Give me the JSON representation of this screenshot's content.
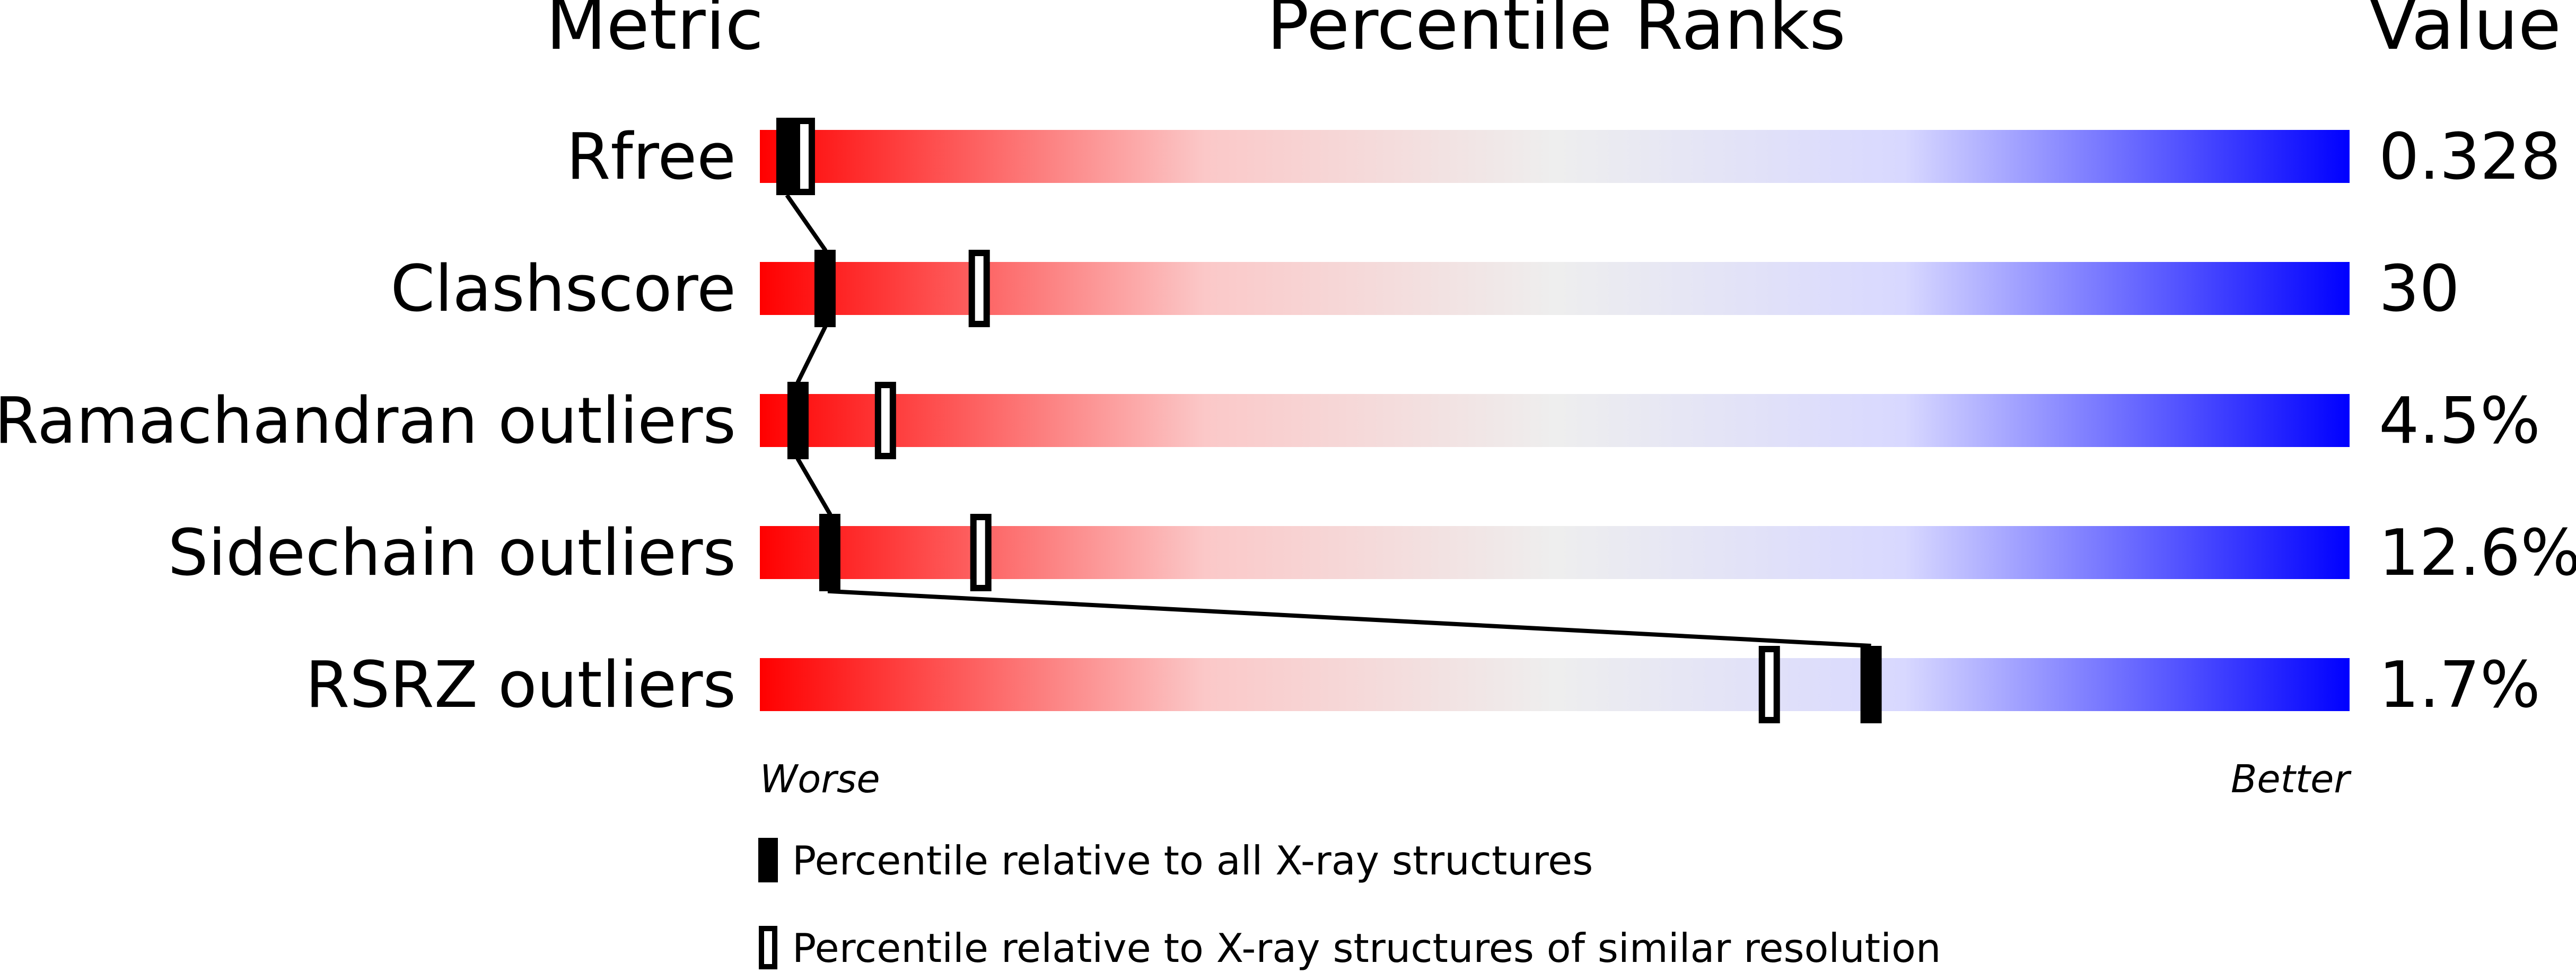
{
  "header": {
    "metric": "Metric",
    "title": "Percentile Ranks",
    "value": "Value"
  },
  "colors": {
    "worse": "#ff0000",
    "neutral": "#eeeeee",
    "better_light": "#d8d8ff",
    "better": "#0000ff",
    "marker": "#000000"
  },
  "chart_data": {
    "type": "percentile-bars",
    "title": "Percentile Ranks",
    "xlim": [
      0,
      100
    ],
    "x_min_label": "Worse",
    "x_max_label": "Better",
    "rows": [
      {
        "metric": "Rfree",
        "value": "0.328",
        "all_percentile": 1.7,
        "similar_percentile": 2.8
      },
      {
        "metric": "Clashscore",
        "value": "30",
        "all_percentile": 4.1,
        "similar_percentile": 13.8
      },
      {
        "metric": "Ramachandran outliers",
        "value": "4.5%",
        "all_percentile": 2.4,
        "similar_percentile": 7.9
      },
      {
        "metric": "Sidechain outliers",
        "value": "12.6%",
        "all_percentile": 4.4,
        "similar_percentile": 13.9
      },
      {
        "metric": "RSRZ outliers",
        "value": "1.7%",
        "all_percentile": 69.9,
        "similar_percentile": 63.5
      }
    ],
    "legend": [
      {
        "marker": "filled",
        "label": "Percentile relative to all X-ray structures"
      },
      {
        "marker": "outline",
        "label": "Percentile relative to X-ray structures of similar resolution"
      }
    ]
  }
}
